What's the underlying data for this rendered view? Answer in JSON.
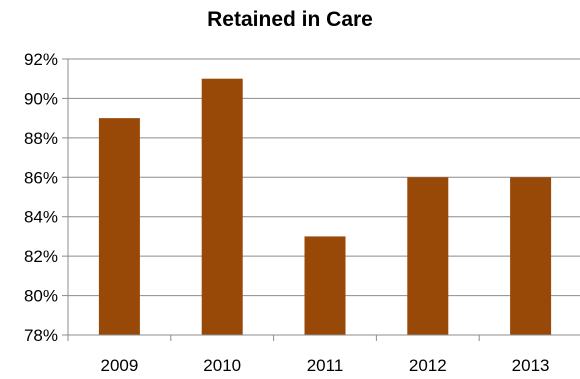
{
  "chart_data": {
    "type": "bar",
    "title": "Retained in Care",
    "xlabel": "",
    "ylabel": "",
    "categories": [
      "2009",
      "2010",
      "2011",
      "2012",
      "2013"
    ],
    "values": [
      89,
      91,
      83,
      86,
      86
    ],
    "ylim": [
      78,
      92
    ],
    "yticks": [
      78,
      80,
      82,
      84,
      86,
      88,
      90,
      92
    ],
    "ytick_format": "%",
    "grid": true,
    "legend": "none",
    "bar_color": "#984807"
  }
}
